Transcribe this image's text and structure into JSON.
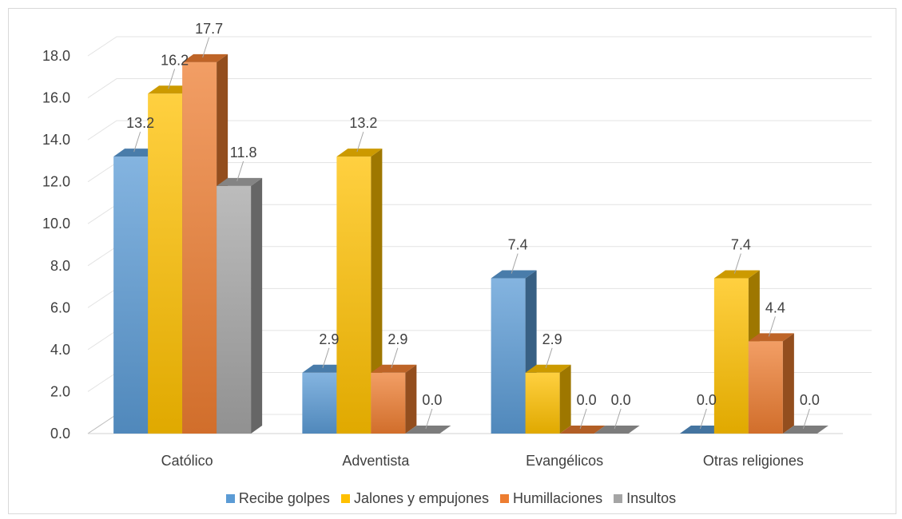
{
  "chart_data": {
    "type": "bar",
    "categories": [
      "Católico",
      "Adventista",
      "Evangélicos",
      "Otras religiones"
    ],
    "series": [
      {
        "name": "Recibe golpes",
        "color": "#5B9BD5",
        "values": [
          13.2,
          2.9,
          7.4,
          0.0
        ]
      },
      {
        "name": "Jalones y empujones",
        "color": "#FFC000",
        "values": [
          16.2,
          13.2,
          2.9,
          7.4
        ]
      },
      {
        "name": "Humillaciones",
        "color": "#ED7D31",
        "values": [
          17.7,
          2.9,
          0.0,
          4.4
        ]
      },
      {
        "name": "Insultos",
        "color": "#A5A5A5",
        "values": [
          11.8,
          0.0,
          0.0,
          0.0
        ]
      }
    ],
    "ylim": [
      0,
      18
    ],
    "yticks": [
      "0.0",
      "2.0",
      "4.0",
      "6.0",
      "8.0",
      "10.0",
      "12.0",
      "14.0",
      "16.0",
      "18.0"
    ],
    "grid": true,
    "legend_position": "bottom",
    "style": "3d-clustered-column"
  }
}
